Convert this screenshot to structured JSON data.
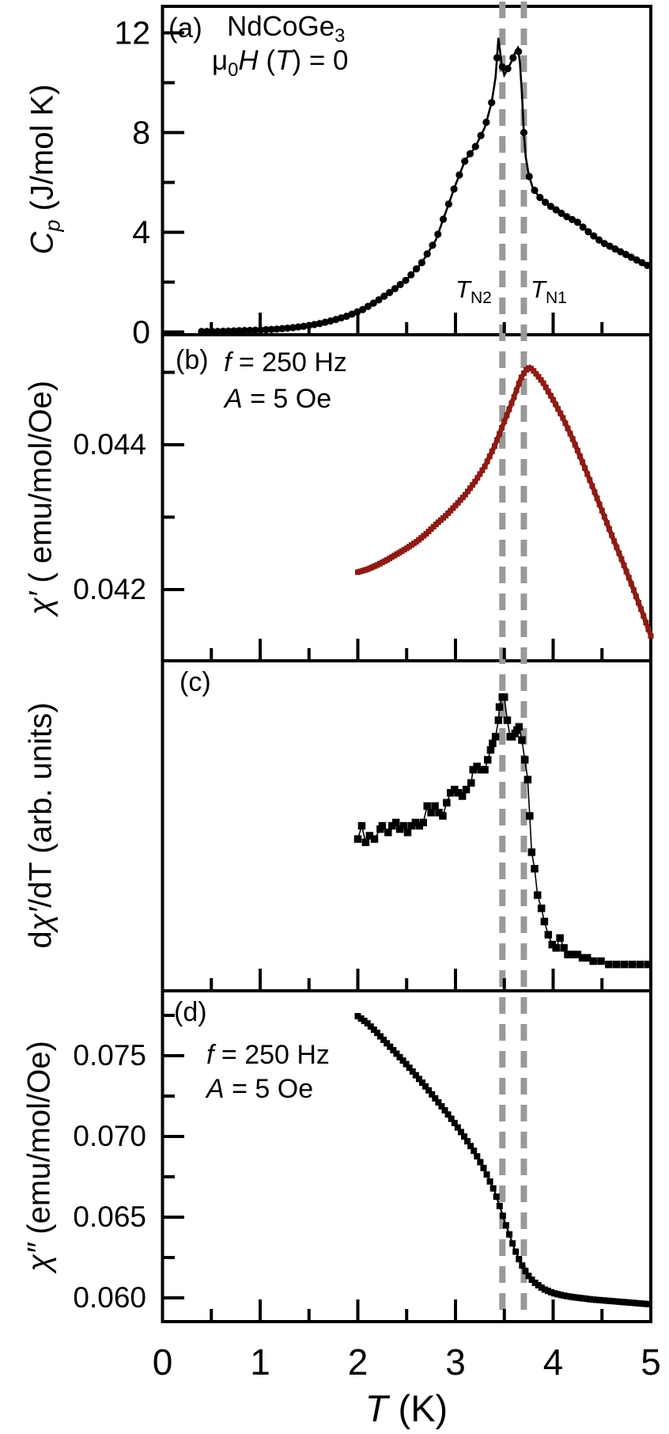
{
  "figure": {
    "xaxis": {
      "ticks": [
        "0",
        "1",
        "2",
        "3",
        "4",
        "5"
      ],
      "label_T": "T",
      "label_rest": " (K)"
    },
    "transitions": {
      "tn2_T": "T",
      "tn2_sub": "N2",
      "tn1_T": "T",
      "tn1_sub": "N1"
    },
    "colors": {
      "data_black": "#000000",
      "chi_red": "#8e1b14",
      "dash_gray": "#999999",
      "frame": "#000000"
    },
    "panels": {
      "a": {
        "tag": "(a)",
        "compound_base": "NdCoGe",
        "compound_sub": "3",
        "field_mu": "μ",
        "field_mu_sub": "0",
        "field_H": "H",
        "field_mid": " (",
        "field_T": "T",
        "field_post": ") = 0",
        "ylabel_C": "C",
        "ylabel_C_sub": "p",
        "ylabel_rest": " (J/mol K)",
        "ytick_labels": [
          "12",
          "8",
          "4",
          "0"
        ]
      },
      "b": {
        "tag": "(b)",
        "f_it": "f",
        "f_rest": " = 250 Hz",
        "a_it": "A",
        "a_rest": " = 5 Oe",
        "ylabel_chi": "χ′",
        "ylabel_rest": " ( emu/mol/Oe)",
        "ytick_labels": [
          "0.044",
          "0.042"
        ]
      },
      "c": {
        "tag": "(c)",
        "ylabel_pre": "d",
        "ylabel_chi": "χ′",
        "ylabel_rest": "/dT (arb. units)"
      },
      "d": {
        "tag": "(d)",
        "f_it": "f",
        "f_rest": " = 250 Hz",
        "a_it": "A",
        "a_rest": " = 5 Oe",
        "ylabel_chi": "χ″",
        "ylabel_rest": " (emu/mol/Oe)",
        "ytick_labels": [
          "0.075",
          "0.070",
          "0.065",
          "0.060"
        ]
      }
    }
  },
  "chart_data": [
    {
      "panel": "a",
      "type": "line",
      "title": "NdCoGe3, mu0·H (T) = 0",
      "ylabel": "Cp (J/mol K)",
      "xlabel": "T (K)",
      "xlim": [
        0,
        5
      ],
      "xticks": [
        0,
        1,
        2,
        3,
        4,
        5
      ],
      "xticks_minor": [
        0.5,
        1.5,
        2.5,
        3.5,
        4.5
      ],
      "ylim": [
        0,
        13.1
      ],
      "yticks": [
        12,
        8,
        4,
        0
      ],
      "yticks_minor": [
        10,
        6,
        2
      ],
      "vlines": [
        3.48,
        3.7
      ],
      "vline_labels": [
        "TN2",
        "TN1"
      ],
      "color": "#000000",
      "marker": "circle",
      "points": [
        [
          0.4,
          0.02
        ],
        [
          0.55,
          0.02
        ],
        [
          0.7,
          0.04
        ],
        [
          0.85,
          0.06
        ],
        [
          1.0,
          0.08
        ],
        [
          1.15,
          0.11
        ],
        [
          1.3,
          0.16
        ],
        [
          1.45,
          0.23
        ],
        [
          1.6,
          0.33
        ],
        [
          1.75,
          0.47
        ],
        [
          1.9,
          0.65
        ],
        [
          2.05,
          0.9
        ],
        [
          2.2,
          1.25
        ],
        [
          2.35,
          1.65
        ],
        [
          2.5,
          2.1
        ],
        [
          2.65,
          2.75
        ],
        [
          2.8,
          3.7
        ],
        [
          2.9,
          4.8
        ],
        [
          3.0,
          5.9
        ],
        [
          3.1,
          6.9
        ],
        [
          3.2,
          7.4
        ],
        [
          3.3,
          8.2
        ],
        [
          3.37,
          9.2
        ],
        [
          3.41,
          10.2
        ],
        [
          3.44,
          11.8
        ],
        [
          3.47,
          10.8
        ],
        [
          3.5,
          10.3
        ],
        [
          3.54,
          10.6
        ],
        [
          3.58,
          10.9
        ],
        [
          3.62,
          11.3
        ],
        [
          3.64,
          11.4
        ],
        [
          3.66,
          10.8
        ],
        [
          3.68,
          9.6
        ],
        [
          3.7,
          8.0
        ],
        [
          3.72,
          7.0
        ],
        [
          3.75,
          6.3
        ],
        [
          3.79,
          5.8
        ],
        [
          3.85,
          5.45
        ],
        [
          3.95,
          5.1
        ],
        [
          4.05,
          4.85
        ],
        [
          4.15,
          4.6
        ],
        [
          4.25,
          4.4
        ],
        [
          4.35,
          4.05
        ],
        [
          4.5,
          3.6
        ],
        [
          4.75,
          3.1
        ],
        [
          5.0,
          2.6
        ]
      ]
    },
    {
      "panel": "b",
      "type": "line",
      "title": "chi' AC susceptibility, f = 250 Hz, A = 5 Oe",
      "ylabel": "chi' (emu/mol/Oe)",
      "xlabel": "T (K)",
      "xlim": [
        0,
        5
      ],
      "xticks": [
        0,
        1,
        2,
        3,
        4,
        5
      ],
      "xticks_minor": [
        0.5,
        1.5,
        2.5,
        3.5,
        4.5
      ],
      "ylim": [
        0.04102,
        0.04552
      ],
      "yticks": [
        0.044,
        0.042
      ],
      "yticks_minor": [
        0.045,
        0.043
      ],
      "vlines": [
        3.48,
        3.7
      ],
      "color": "#8e1b14",
      "marker": "square",
      "points": [
        [
          2.0,
          0.04224
        ],
        [
          2.1,
          0.04228
        ],
        [
          2.2,
          0.04234
        ],
        [
          2.3,
          0.04241
        ],
        [
          2.4,
          0.04249
        ],
        [
          2.5,
          0.04257
        ],
        [
          2.6,
          0.04266
        ],
        [
          2.7,
          0.04277
        ],
        [
          2.8,
          0.0429
        ],
        [
          2.9,
          0.04302
        ],
        [
          3.0,
          0.04316
        ],
        [
          3.1,
          0.04331
        ],
        [
          3.2,
          0.04349
        ],
        [
          3.3,
          0.0437
        ],
        [
          3.4,
          0.04398
        ],
        [
          3.5,
          0.04432
        ],
        [
          3.6,
          0.04466
        ],
        [
          3.67,
          0.04492
        ],
        [
          3.72,
          0.04503
        ],
        [
          3.76,
          0.04507
        ],
        [
          3.8,
          0.04502
        ],
        [
          3.85,
          0.04494
        ],
        [
          3.9,
          0.04485
        ],
        [
          4.0,
          0.04462
        ],
        [
          4.1,
          0.04437
        ],
        [
          4.2,
          0.04408
        ],
        [
          4.3,
          0.04376
        ],
        [
          4.4,
          0.04343
        ],
        [
          4.5,
          0.04309
        ],
        [
          4.6,
          0.04275
        ],
        [
          4.7,
          0.04242
        ],
        [
          4.8,
          0.04208
        ],
        [
          4.9,
          0.04173
        ],
        [
          5.0,
          0.04136
        ]
      ]
    },
    {
      "panel": "c",
      "type": "scatter",
      "title": "dchi'/dT (arb. units)",
      "ylabel": "dchi'/dT (arb. units)",
      "xlabel": "T (K)",
      "xlim": [
        0,
        5
      ],
      "xticks": [
        0,
        1,
        2,
        3,
        4,
        5
      ],
      "xticks_minor": [
        0.5,
        1.5,
        2.5,
        3.5,
        4.5
      ],
      "ylim": [
        0,
        1
      ],
      "yticks": [],
      "yticks_minor": [],
      "vlines": [
        3.48,
        3.7
      ],
      "color": "#000000",
      "marker": "square",
      "points": [
        [
          2.0,
          0.46
        ],
        [
          2.04,
          0.5
        ],
        [
          2.08,
          0.45
        ],
        [
          2.12,
          0.47
        ],
        [
          2.17,
          0.46
        ],
        [
          2.23,
          0.49
        ],
        [
          2.25,
          0.5
        ],
        [
          2.31,
          0.48
        ],
        [
          2.35,
          0.5
        ],
        [
          2.39,
          0.51
        ],
        [
          2.43,
          0.49
        ],
        [
          2.47,
          0.5
        ],
        [
          2.51,
          0.48
        ],
        [
          2.55,
          0.5
        ],
        [
          2.59,
          0.51
        ],
        [
          2.63,
          0.5
        ],
        [
          2.67,
          0.51
        ],
        [
          2.71,
          0.56
        ],
        [
          2.75,
          0.54
        ],
        [
          2.79,
          0.56
        ],
        [
          2.83,
          0.54
        ],
        [
          2.87,
          0.53
        ],
        [
          2.91,
          0.57
        ],
        [
          2.95,
          0.6
        ],
        [
          2.99,
          0.61
        ],
        [
          3.03,
          0.6
        ],
        [
          3.07,
          0.59
        ],
        [
          3.11,
          0.61
        ],
        [
          3.16,
          0.63
        ],
        [
          3.18,
          0.67
        ],
        [
          3.22,
          0.68
        ],
        [
          3.26,
          0.67
        ],
        [
          3.3,
          0.67
        ],
        [
          3.33,
          0.7
        ],
        [
          3.36,
          0.73
        ],
        [
          3.38,
          0.75
        ],
        [
          3.41,
          0.77
        ],
        [
          3.44,
          0.82
        ],
        [
          3.45,
          0.86
        ],
        [
          3.48,
          0.89
        ],
        [
          3.5,
          0.89
        ],
        [
          3.53,
          0.82
        ],
        [
          3.56,
          0.77
        ],
        [
          3.58,
          0.77
        ],
        [
          3.61,
          0.78
        ],
        [
          3.63,
          0.79
        ],
        [
          3.65,
          0.8
        ],
        [
          3.68,
          0.76
        ],
        [
          3.71,
          0.7
        ],
        [
          3.74,
          0.64
        ],
        [
          3.76,
          0.53
        ],
        [
          3.78,
          0.42
        ],
        [
          3.81,
          0.37
        ],
        [
          3.84,
          0.29
        ],
        [
          3.88,
          0.25
        ],
        [
          3.91,
          0.21
        ],
        [
          3.95,
          0.17
        ],
        [
          3.99,
          0.14
        ],
        [
          4.03,
          0.13
        ],
        [
          4.07,
          0.16
        ],
        [
          4.11,
          0.13
        ],
        [
          4.15,
          0.11
        ],
        [
          4.19,
          0.11
        ],
        [
          4.25,
          0.11
        ],
        [
          4.3,
          0.1
        ],
        [
          4.35,
          0.1
        ],
        [
          4.41,
          0.09
        ],
        [
          4.49,
          0.09
        ],
        [
          4.57,
          0.08
        ],
        [
          4.65,
          0.08
        ],
        [
          4.73,
          0.08
        ],
        [
          4.81,
          0.08
        ],
        [
          4.89,
          0.08
        ],
        [
          4.97,
          0.08
        ]
      ]
    },
    {
      "panel": "d",
      "type": "line",
      "title": "chi'' AC susceptibility, f = 250 Hz, A = 5 Oe",
      "ylabel": "chi'' (emu/mol/Oe)",
      "xlabel": "T (K)",
      "xlim": [
        0,
        5
      ],
      "xticks": [
        0,
        1,
        2,
        3,
        4,
        5
      ],
      "xticks_minor": [
        0.5,
        1.5,
        2.5,
        3.5,
        4.5
      ],
      "ylim": [
        0.05853,
        0.07902
      ],
      "yticks": [
        0.075,
        0.07,
        0.065,
        0.06
      ],
      "yticks_minor": [
        0.0775,
        0.0725,
        0.0675,
        0.0625
      ],
      "vlines": [
        3.48,
        3.7
      ],
      "color": "#000000",
      "marker": "square",
      "points": [
        [
          2.0,
          0.07745
        ],
        [
          2.1,
          0.077
        ],
        [
          2.2,
          0.0764
        ],
        [
          2.3,
          0.07575
        ],
        [
          2.4,
          0.0751
        ],
        [
          2.5,
          0.07445
        ],
        [
          2.6,
          0.07375
        ],
        [
          2.7,
          0.07305
        ],
        [
          2.8,
          0.0723
        ],
        [
          2.9,
          0.07155
        ],
        [
          3.0,
          0.07075
        ],
        [
          3.1,
          0.0699
        ],
        [
          3.2,
          0.069
        ],
        [
          3.3,
          0.0679
        ],
        [
          3.4,
          0.0666
        ],
        [
          3.46,
          0.06555
        ],
        [
          3.5,
          0.0648
        ],
        [
          3.55,
          0.06395
        ],
        [
          3.6,
          0.0631
        ],
        [
          3.65,
          0.0624
        ],
        [
          3.7,
          0.0618
        ],
        [
          3.75,
          0.06135
        ],
        [
          3.8,
          0.061
        ],
        [
          3.9,
          0.06055
        ],
        [
          4.0,
          0.0603
        ],
        [
          4.1,
          0.06015
        ],
        [
          4.2,
          0.06005
        ],
        [
          4.4,
          0.0599
        ],
        [
          4.6,
          0.0598
        ],
        [
          4.8,
          0.0597
        ],
        [
          5.0,
          0.0596
        ]
      ]
    }
  ]
}
